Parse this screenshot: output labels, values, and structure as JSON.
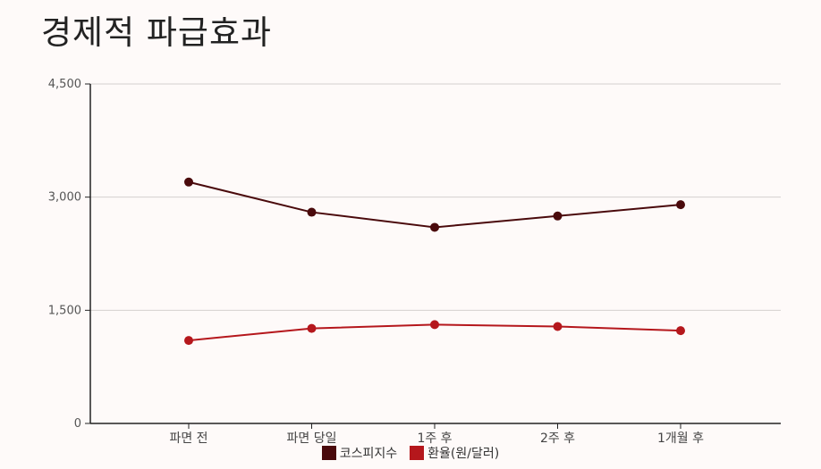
{
  "chart_data": {
    "type": "line",
    "title": "경제적 파급효과",
    "categories": [
      "파면 전",
      "파면 당일",
      "1주 후",
      "2주 후",
      "1개월 후"
    ],
    "series": [
      {
        "name": "코스피지수",
        "values": [
          3200,
          2800,
          2600,
          2750,
          2900
        ],
        "color": "#4a0a0c"
      },
      {
        "name": "환율(원/달러)",
        "values": [
          1100,
          1260,
          1310,
          1285,
          1230
        ],
        "color": "#b5171c"
      }
    ],
    "ylim": [
      0,
      4500
    ],
    "yticks": [
      "0",
      "1,500",
      "3,000",
      "4,500"
    ],
    "ytick_values": [
      0,
      1500,
      3000,
      4500
    ],
    "grid": true,
    "legend_position": "bottom"
  }
}
